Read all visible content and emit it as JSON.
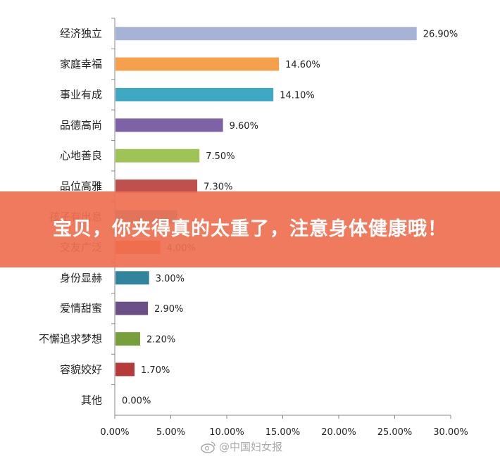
{
  "chart_data": {
    "type": "bar",
    "orientation": "horizontal",
    "categories": [
      "经济独立",
      "家庭幸福",
      "事业有成",
      "品德高尚",
      "心地善良",
      "品位高雅",
      "孩子有出息",
      "交友广泛",
      "身份显赫",
      "爱情甜蜜",
      "不懈追求梦想",
      "容貌姣好",
      "其他"
    ],
    "values": [
      26.9,
      14.6,
      14.1,
      9.6,
      7.5,
      7.3,
      5.5,
      4.0,
      3.0,
      2.9,
      2.2,
      1.7,
      0.0
    ],
    "value_labels": [
      "26.90%",
      "14.60%",
      "14.10%",
      "9.60%",
      "7.50%",
      "7.30%",
      "",
      "4.00%",
      "3.00%",
      "2.90%",
      "2.20%",
      "1.70%",
      "0.00%"
    ],
    "colors": [
      "#a6b3d6",
      "#f5a04d",
      "#3fa8c4",
      "#7d63a6",
      "#9ec457",
      "#c0504d",
      "#4bacc6",
      "#e8561e",
      "#31849b",
      "#6b4f87",
      "#77a03c",
      "#b73a3a",
      "#4f81bd"
    ],
    "xlim": [
      0,
      30
    ],
    "x_ticks": [
      "0.00%",
      "5.00%",
      "10.00%",
      "15.00%",
      "20.00%",
      "25.00%",
      "30.00%"
    ],
    "title": "",
    "xlabel": "",
    "ylabel": "",
    "grid": false
  },
  "banner": {
    "text": "宝贝，你夹得真的太重了，注意身体健康哦！"
  },
  "watermark": {
    "text": "@中国妇女报",
    "icon": "weibo-icon"
  }
}
